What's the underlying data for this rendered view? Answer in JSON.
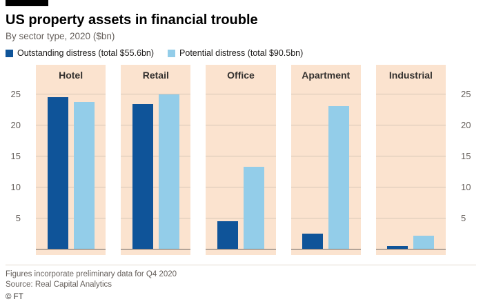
{
  "chart_data": {
    "type": "bar",
    "title": "US property assets in financial trouble",
    "subtitle": "By sector type, 2020 ($bn)",
    "categories": [
      "Hotel",
      "Retail",
      "Office",
      "Apartment",
      "Industrial"
    ],
    "series": [
      {
        "name": "Outstanding distress (total $55.6bn)",
        "color": "#0f5499",
        "values": [
          24.5,
          23.4,
          4.4,
          2.5,
          0.5
        ]
      },
      {
        "name": "Potential distress (total $90.5bn)",
        "color": "#93cde9",
        "values": [
          23.7,
          24.9,
          13.2,
          23.0,
          2.1
        ]
      }
    ],
    "ylim": [
      0,
      26.5
    ],
    "yticks": [
      5,
      10,
      15,
      20,
      25
    ],
    "grid": "horizontal",
    "legend_position": "top",
    "panel_background": "#fbe3cf",
    "footnote": "Figures incorporate preliminary data for Q4 2020",
    "source": "Source: Real Capital Analytics",
    "credit": "© FT"
  }
}
